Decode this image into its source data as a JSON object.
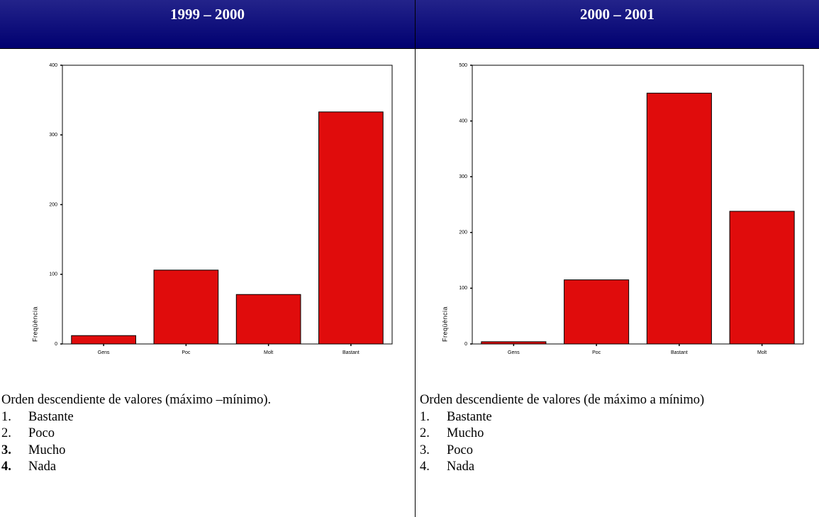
{
  "columns": [
    {
      "header": "1999 – 2000",
      "chart": {
        "type": "bar",
        "ylabel": "Freqüència",
        "categories": [
          "Gens",
          "Poc",
          "Molt",
          "Bastant"
        ],
        "values": [
          12,
          106,
          71,
          333
        ],
        "color": "#e00c0c",
        "ylim": [
          0,
          400
        ],
        "yticks": [
          0,
          100,
          200,
          300,
          400
        ]
      },
      "text": "Orden descendiente de valores (máximo –mínimo).",
      "list": [
        {
          "num": "1.",
          "label": "Bastante",
          "bold": false
        },
        {
          "num": "2.",
          "label": "Poco",
          "bold": false
        },
        {
          "num": "3.",
          "label": "Mucho",
          "bold": true
        },
        {
          "num": "4.",
          "label": "Nada",
          "bold": true
        }
      ]
    },
    {
      "header": "2000 – 2001",
      "chart": {
        "type": "bar",
        "ylabel": "Freqüència",
        "categories": [
          "Gens",
          "Poc",
          "Bastant",
          "Molt"
        ],
        "values": [
          4,
          115,
          450,
          238
        ],
        "color": "#e00c0c",
        "ylim": [
          0,
          500
        ],
        "yticks": [
          0,
          100,
          200,
          300,
          400,
          500
        ]
      },
      "text": "Orden descendiente de valores (de máximo a mínimo)",
      "list": [
        {
          "num": "1.",
          "label": "Bastante",
          "bold": false
        },
        {
          "num": "2.",
          "label": "Mucho",
          "bold": false
        },
        {
          "num": "3.",
          "label": "Poco",
          "bold": false
        },
        {
          "num": "4.",
          "label": "Nada",
          "bold": false
        }
      ]
    }
  ]
}
